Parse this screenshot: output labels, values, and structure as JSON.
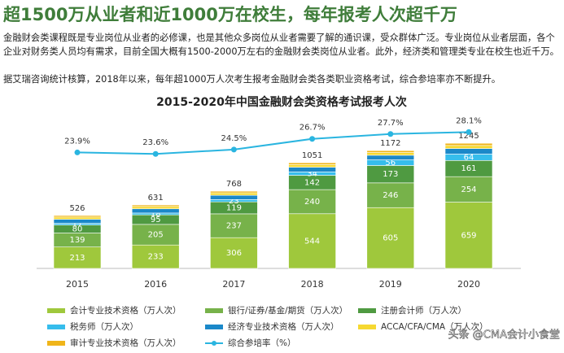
{
  "header": {
    "title": "超1500万从业者和近1000万在校生，每年报考人次超千万",
    "paragraphs": [
      "金融财会类课程既是专业岗位从业者的必修课，也是其他众多岗位从业者需要了解的通识课，受众群体广泛。专业岗位从业者层面，各个企业对财务类人员均有需求，目前全国大概有1500-2000万左右的金融财会类岗位从业者。此外，经济类和管理类专业在校生也近千万。",
      "据艾瑞咨询统计核算，2018年以来，每年超1000万人次考生报考金融财会类各类职业资格考试，综合参培率亦不断提升。"
    ]
  },
  "chart_data": {
    "type": "stacked-bar-line",
    "title": "2015-2020年中国金融财会类资格考试报考人次",
    "categories": [
      "2015",
      "2016",
      "2017",
      "2018",
      "2019",
      "2020"
    ],
    "series": [
      {
        "name": "会计专业技术资格（万人次）",
        "color": "#9fc83c",
        "values": [
          213,
          233,
          306,
          544,
          605,
          659
        ],
        "show_labels": true
      },
      {
        "name": "银行/证券/基金/期货（万人次）",
        "color": "#77b24a",
        "values": [
          139,
          205,
          237,
          240,
          246,
          254
        ],
        "show_labels": true
      },
      {
        "name": "注册会计师（万人次）",
        "color": "#4f9a41",
        "values": [
          80,
          95,
          119,
          142,
          173,
          161
        ],
        "show_labels": true
      },
      {
        "name": "税务师（万人次）",
        "color": "#36bdec",
        "values": [
          17,
          18,
          23,
          34,
          56,
          64
        ],
        "show_labels": true
      },
      {
        "name": "经济专业技术资格（万人次）",
        "color": "#1b88c9",
        "values": [
          40,
          42,
          43,
          47,
          46,
          55
        ],
        "show_labels": false
      },
      {
        "name": "ACCA/CFA/CMA（万人次）",
        "color": "#f6d831",
        "values": [
          22,
          23,
          24,
          26,
          27,
          30
        ],
        "show_labels": false
      },
      {
        "name": "审计专业技术资格（万人次）",
        "color": "#f0b51a",
        "values": [
          15,
          15,
          16,
          18,
          19,
          22
        ],
        "show_labels": false
      }
    ],
    "totals": [
      526,
      631,
      768,
      1051,
      1172,
      1245
    ],
    "line": {
      "name": "综合参培率（%）",
      "color": "#2ab5e0",
      "axis": "y2",
      "values": [
        23.9,
        23.6,
        24.5,
        26.7,
        27.7,
        28.1
      ],
      "value_labels": [
        "23.9%",
        "23.6%",
        "24.5%",
        "26.7%",
        "27.7%",
        "28.1%"
      ]
    },
    "ylim": [
      0,
      1400
    ],
    "y2lim": [
      0,
      29
    ]
  },
  "watermark": "头条 @CMA会计小食堂"
}
